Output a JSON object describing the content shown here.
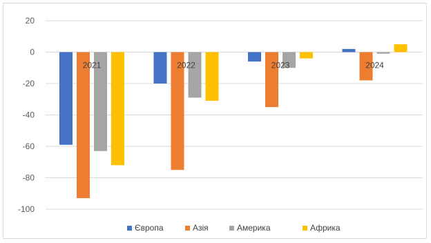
{
  "chart_data": {
    "type": "bar",
    "categories": [
      "2021",
      "2022",
      "2023",
      "2024"
    ],
    "series": [
      {
        "name": "Європа",
        "values": [
          -59,
          -20,
          -6,
          2
        ],
        "color": "#4472c4"
      },
      {
        "name": "Азія",
        "values": [
          -93,
          -75,
          -35,
          -18
        ],
        "color": "#ed7d31"
      },
      {
        "name": "Америка",
        "values": [
          -63,
          -29,
          -10,
          -1
        ],
        "color": "#a5a5a5"
      },
      {
        "name": "Африка",
        "values": [
          -72,
          -31,
          -4,
          5
        ],
        "color": "#ffc000"
      }
    ],
    "yticks": [
      20,
      0,
      -20,
      -40,
      -60,
      -80,
      -100
    ],
    "ylim": [
      -100,
      20
    ],
    "grid": true,
    "legend_position": "bottom"
  }
}
